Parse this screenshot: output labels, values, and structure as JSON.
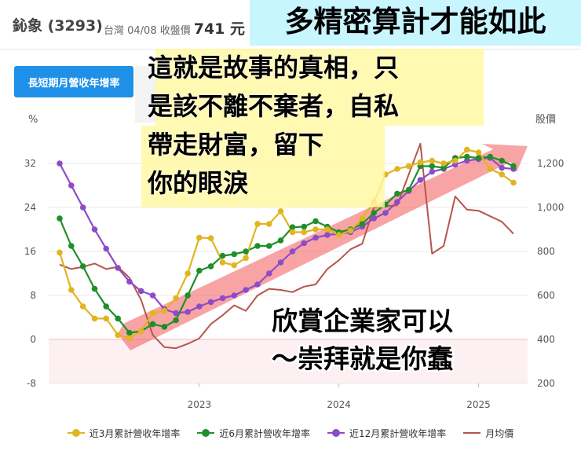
{
  "header": {
    "stock_name": "鈊象 (3293)",
    "quote_label": "台灣 04/08 收盤價",
    "price": "741 元"
  },
  "tab": {
    "label": "長短期月營收年增率"
  },
  "overlays": {
    "top": "多精密算計才能如此",
    "main": "這就是故事的真相，只\n是該不離不棄者，自私\n帶走財富，留下\n你的眼淚",
    "bottom": "欣賞企業家可以\n～崇拜就是你蠢"
  },
  "colors": {
    "m3": "#e0b51f",
    "m6": "#1f8f2a",
    "m12": "#8e4bc9",
    "price": "#b5564c",
    "arrow": "#f25a5a"
  },
  "chart_data": {
    "type": "line",
    "left_axis": {
      "title": "%",
      "ticks": [
        "32",
        "24",
        "16",
        "8",
        "0",
        "-8"
      ],
      "range": [
        -8,
        32
      ]
    },
    "right_axis": {
      "title": "股價",
      "ticks": [
        "1,200",
        "1,000",
        "800",
        "600",
        "400",
        "200"
      ],
      "range": [
        200,
        1200
      ]
    },
    "x_ticks": [
      "2023",
      "2024",
      "2025"
    ],
    "series": [
      {
        "name": "近3月累計營收年增率",
        "key": "m3",
        "axis": "left",
        "values": [
          [
            2022.0,
            15.8
          ],
          [
            2022.083,
            9
          ],
          [
            2022.167,
            6
          ],
          [
            2022.25,
            3.8
          ],
          [
            2022.333,
            3.8
          ],
          [
            2022.417,
            0.8
          ],
          [
            2022.5,
            0.2
          ],
          [
            2022.583,
            1.5
          ],
          [
            2022.667,
            4.8
          ],
          [
            2022.75,
            5.2
          ],
          [
            2022.833,
            7.5
          ],
          [
            2022.917,
            12
          ],
          [
            2023.0,
            18.5
          ],
          [
            2023.083,
            18.4
          ],
          [
            2023.167,
            14
          ],
          [
            2023.25,
            13.5
          ],
          [
            2023.333,
            14.8
          ],
          [
            2023.417,
            21
          ],
          [
            2023.5,
            21
          ],
          [
            2023.583,
            23.3
          ],
          [
            2023.667,
            19.5
          ],
          [
            2023.75,
            19.5
          ],
          [
            2023.833,
            20
          ],
          [
            2023.917,
            20
          ],
          [
            2024.0,
            19
          ],
          [
            2024.083,
            19.8
          ],
          [
            2024.167,
            22
          ],
          [
            2024.25,
            25
          ],
          [
            2024.333,
            30
          ],
          [
            2024.417,
            31
          ],
          [
            2024.5,
            31.5
          ],
          [
            2024.583,
            32.2
          ],
          [
            2024.667,
            32.5
          ],
          [
            2024.75,
            32
          ],
          [
            2024.833,
            32.5
          ],
          [
            2024.917,
            34.5
          ],
          [
            2025.0,
            34
          ],
          [
            2025.083,
            31
          ],
          [
            2025.167,
            30
          ],
          [
            2025.25,
            28.5
          ]
        ]
      },
      {
        "name": "近6月累計營收年增率",
        "key": "m6",
        "axis": "left",
        "values": [
          [
            2022.0,
            22
          ],
          [
            2022.083,
            17
          ],
          [
            2022.167,
            13.3
          ],
          [
            2022.25,
            9.2
          ],
          [
            2022.333,
            6
          ],
          [
            2022.417,
            3.8
          ],
          [
            2022.5,
            1.2
          ],
          [
            2022.583,
            1.5
          ],
          [
            2022.667,
            2.8
          ],
          [
            2022.75,
            2.3
          ],
          [
            2022.833,
            3.5
          ],
          [
            2022.917,
            8
          ],
          [
            2023.0,
            12.5
          ],
          [
            2023.083,
            13.3
          ],
          [
            2023.167,
            15.2
          ],
          [
            2023.25,
            15.5
          ],
          [
            2023.333,
            16
          ],
          [
            2023.417,
            17
          ],
          [
            2023.5,
            17
          ],
          [
            2023.583,
            18
          ],
          [
            2023.667,
            20.4
          ],
          [
            2023.75,
            20.5
          ],
          [
            2023.833,
            21.5
          ],
          [
            2023.917,
            20.5
          ],
          [
            2024.0,
            19.5
          ],
          [
            2024.083,
            20
          ],
          [
            2024.167,
            21
          ],
          [
            2024.25,
            23
          ],
          [
            2024.333,
            24.5
          ],
          [
            2024.417,
            26.5
          ],
          [
            2024.5,
            27.2
          ],
          [
            2024.583,
            31.5
          ],
          [
            2024.667,
            31.5
          ],
          [
            2024.75,
            31.2
          ],
          [
            2024.833,
            33
          ],
          [
            2024.917,
            33.2
          ],
          [
            2025.0,
            33
          ],
          [
            2025.083,
            33.2
          ],
          [
            2025.167,
            32.5
          ],
          [
            2025.25,
            31.5
          ]
        ]
      },
      {
        "name": "近12月累計營收年增率",
        "key": "m12",
        "axis": "left",
        "values": [
          [
            2022.0,
            32
          ],
          [
            2022.083,
            28
          ],
          [
            2022.167,
            24
          ],
          [
            2022.25,
            20
          ],
          [
            2022.333,
            16.5
          ],
          [
            2022.417,
            13
          ],
          [
            2022.5,
            10.5
          ],
          [
            2022.583,
            8.8
          ],
          [
            2022.667,
            8
          ],
          [
            2022.75,
            5.5
          ],
          [
            2022.833,
            4.8
          ],
          [
            2022.917,
            5
          ],
          [
            2023.0,
            6
          ],
          [
            2023.083,
            6.8
          ],
          [
            2023.167,
            7.5
          ],
          [
            2023.25,
            8
          ],
          [
            2023.333,
            9
          ],
          [
            2023.417,
            10
          ],
          [
            2023.5,
            12
          ],
          [
            2023.583,
            14
          ],
          [
            2023.667,
            16
          ],
          [
            2023.75,
            17.5
          ],
          [
            2023.833,
            18.5
          ],
          [
            2023.917,
            19
          ],
          [
            2024.0,
            19.2
          ],
          [
            2024.083,
            19.5
          ],
          [
            2024.167,
            20.5
          ],
          [
            2024.25,
            22
          ],
          [
            2024.333,
            23
          ],
          [
            2024.417,
            25
          ],
          [
            2024.5,
            27
          ],
          [
            2024.583,
            29
          ],
          [
            2024.667,
            30.5
          ],
          [
            2024.75,
            31
          ],
          [
            2024.833,
            31.8
          ],
          [
            2024.917,
            32.5
          ],
          [
            2025.0,
            32.8
          ],
          [
            2025.083,
            33
          ],
          [
            2025.167,
            31.2
          ],
          [
            2025.25,
            31
          ]
        ]
      },
      {
        "name": "月均價",
        "key": "price",
        "axis": "right",
        "values": [
          [
            2022.0,
            740
          ],
          [
            2022.083,
            720
          ],
          [
            2022.167,
            730
          ],
          [
            2022.25,
            745
          ],
          [
            2022.333,
            720
          ],
          [
            2022.417,
            730
          ],
          [
            2022.5,
            680
          ],
          [
            2022.583,
            580
          ],
          [
            2022.667,
            420
          ],
          [
            2022.75,
            365
          ],
          [
            2022.833,
            360
          ],
          [
            2022.917,
            380
          ],
          [
            2023.0,
            405
          ],
          [
            2023.083,
            470
          ],
          [
            2023.167,
            510
          ],
          [
            2023.25,
            555
          ],
          [
            2023.333,
            530
          ],
          [
            2023.417,
            600
          ],
          [
            2023.5,
            630
          ],
          [
            2023.583,
            625
          ],
          [
            2023.667,
            615
          ],
          [
            2023.75,
            640
          ],
          [
            2023.833,
            650
          ],
          [
            2023.917,
            720
          ],
          [
            2024.0,
            760
          ],
          [
            2024.083,
            810
          ],
          [
            2024.167,
            835
          ],
          [
            2024.25,
            1000
          ],
          [
            2024.333,
            1005
          ],
          [
            2024.417,
            1010
          ],
          [
            2024.5,
            1150
          ],
          [
            2024.583,
            1290
          ],
          [
            2024.667,
            790
          ],
          [
            2024.75,
            825
          ],
          [
            2024.833,
            1050
          ],
          [
            2024.917,
            990
          ],
          [
            2025.0,
            985
          ],
          [
            2025.083,
            960
          ],
          [
            2025.167,
            935
          ],
          [
            2025.25,
            880
          ]
        ]
      }
    ],
    "legend_placement": "bottom",
    "grid": "horizontal"
  }
}
